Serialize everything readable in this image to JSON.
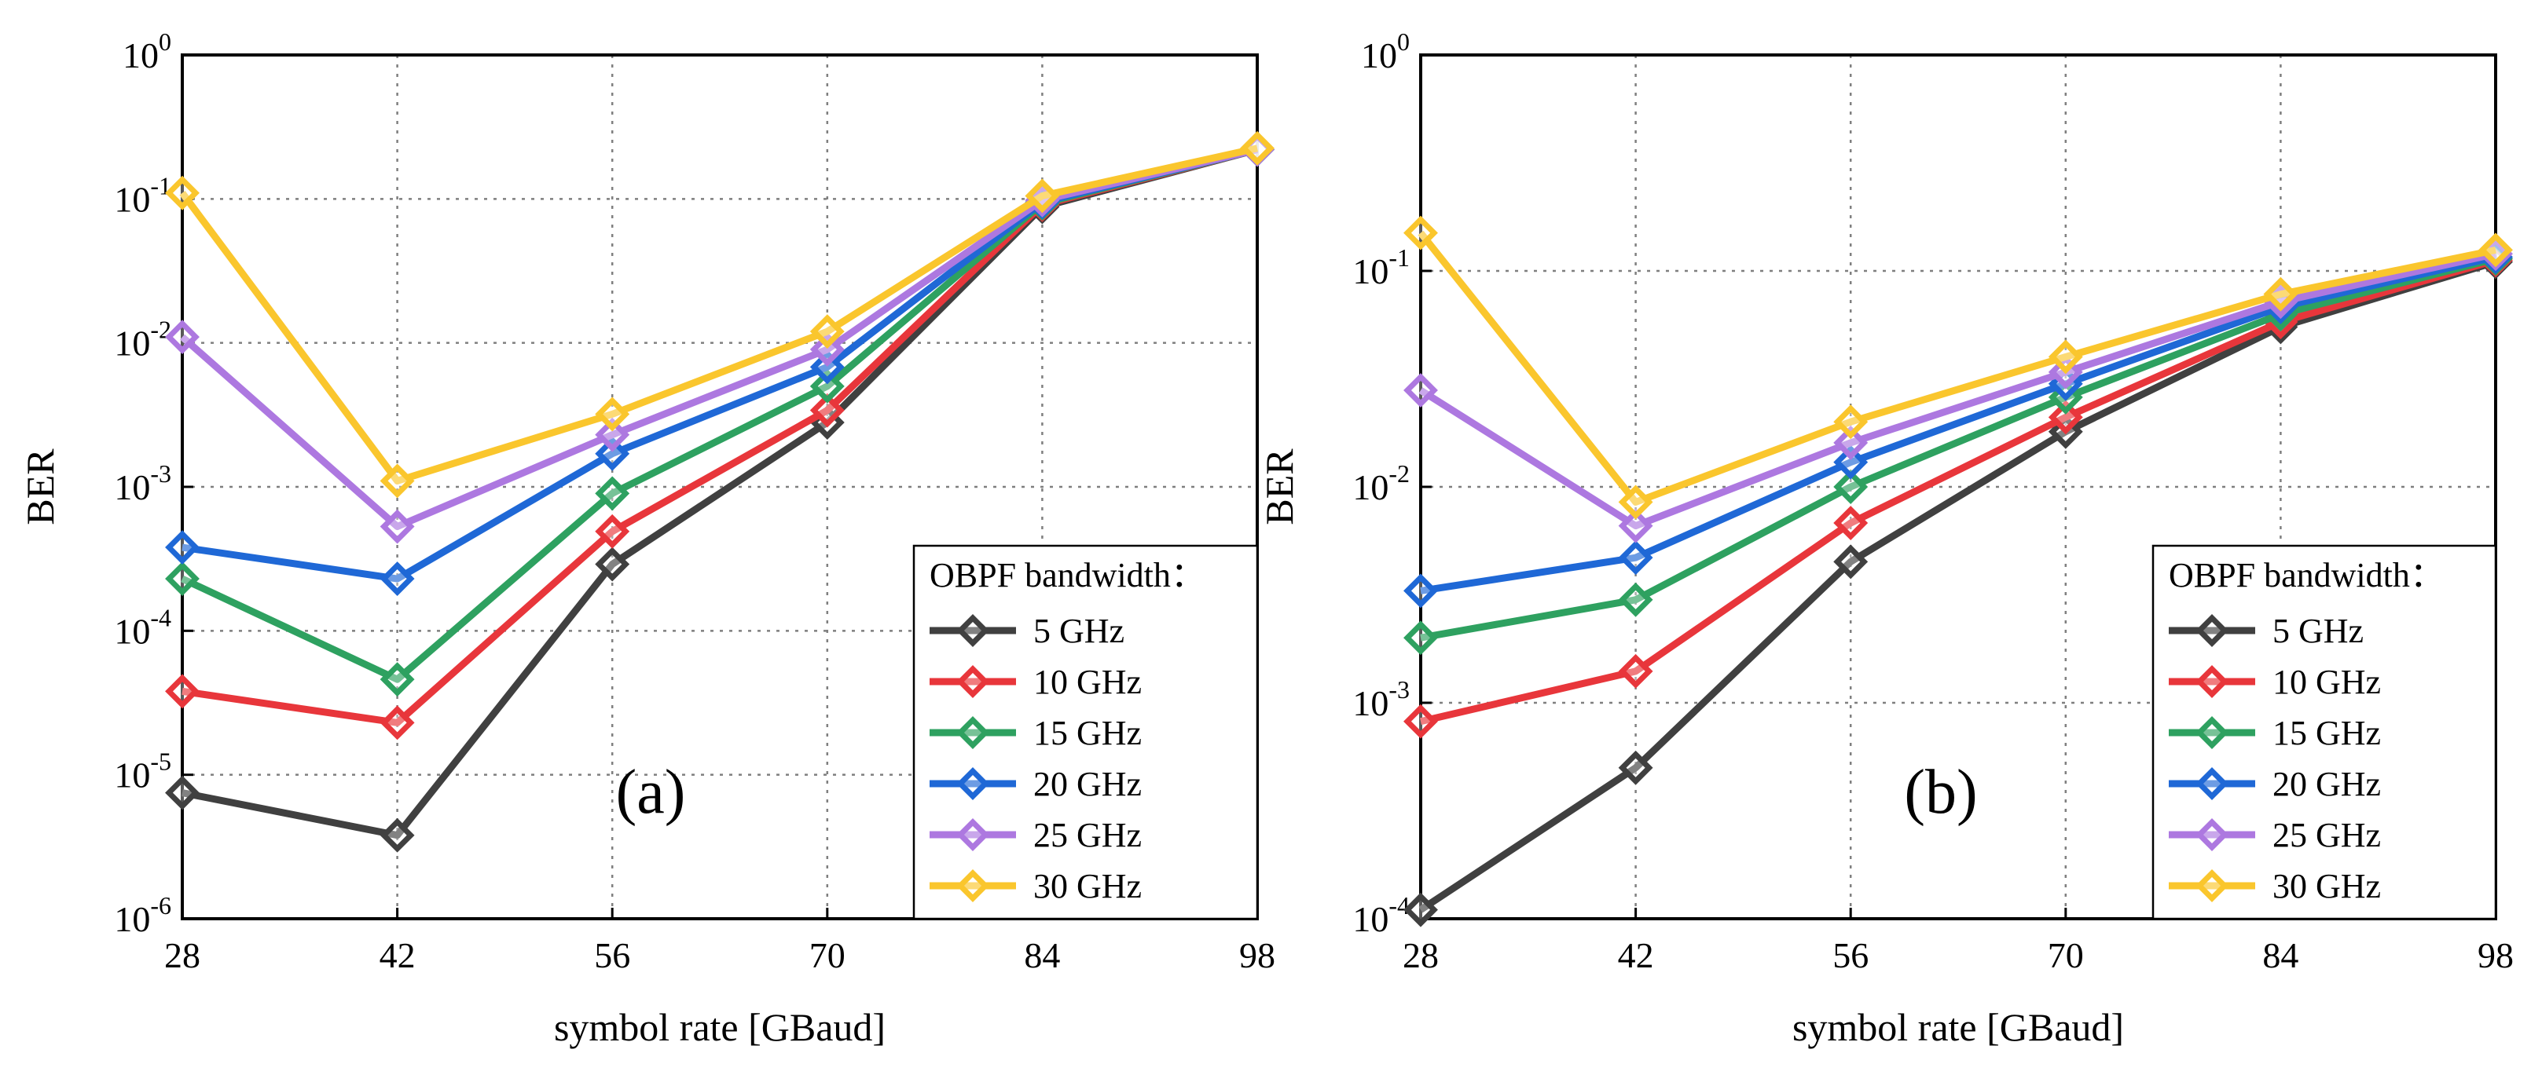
{
  "chart_data": [
    {
      "type": "line",
      "panel_label": "(a)",
      "xlabel": "symbol rate [GBaud]",
      "ylabel": "BER",
      "yscale": "log",
      "grid": true,
      "x": [
        28,
        42,
        56,
        70,
        84,
        98
      ],
      "x_tick_labels": [
        "28",
        "42",
        "56",
        "70",
        "84",
        "98"
      ],
      "xlim": [
        28,
        98
      ],
      "ylim": [
        1e-06,
        1
      ],
      "y_ticks": [
        {
          "exp": -6,
          "base": "10",
          "sup": "-6"
        },
        {
          "exp": -5,
          "base": "10",
          "sup": "-5"
        },
        {
          "exp": -4,
          "base": "10",
          "sup": "-4"
        },
        {
          "exp": -3,
          "base": "10",
          "sup": "-3"
        },
        {
          "exp": -2,
          "base": "10",
          "sup": "-2"
        },
        {
          "exp": -1,
          "base": "10",
          "sup": "-1"
        },
        {
          "exp": 0,
          "base": "10",
          "sup": "0"
        }
      ],
      "legend": {
        "title": "OBPF bandwidth：",
        "position": "bottom-right"
      },
      "series": [
        {
          "name": "5 GHz",
          "color": "#404040",
          "values": [
            7.5e-06,
            3.8e-06,
            0.00029,
            0.0028,
            0.088,
            0.22
          ]
        },
        {
          "name": "10 GHz",
          "color": "#e8363b",
          "values": [
            3.8e-05,
            2.3e-05,
            0.00049,
            0.0034,
            0.091,
            0.22
          ]
        },
        {
          "name": "15 GHz",
          "color": "#2ea160",
          "values": [
            0.00023,
            4.6e-05,
            0.0009,
            0.005,
            0.093,
            0.22
          ]
        },
        {
          "name": "20 GHz",
          "color": "#1f68d6",
          "values": [
            0.00038,
            0.00023,
            0.0017,
            0.0068,
            0.095,
            0.22
          ]
        },
        {
          "name": "25 GHz",
          "color": "#ad78e0",
          "values": [
            0.011,
            0.00053,
            0.0023,
            0.009,
            0.098,
            0.22
          ]
        },
        {
          "name": "30 GHz",
          "color": "#fac62d",
          "values": [
            0.11,
            0.0011,
            0.0032,
            0.012,
            0.105,
            0.225
          ]
        }
      ]
    },
    {
      "type": "line",
      "panel_label": "(b)",
      "xlabel": "symbol rate [GBaud]",
      "ylabel": "BER",
      "yscale": "log",
      "grid": true,
      "x": [
        28,
        42,
        56,
        70,
        84,
        98
      ],
      "x_tick_labels": [
        "28",
        "42",
        "56",
        "70",
        "84",
        "98"
      ],
      "xlim": [
        28,
        98
      ],
      "ylim": [
        0.0001,
        1
      ],
      "y_ticks": [
        {
          "exp": -4,
          "base": "10",
          "sup": "-4"
        },
        {
          "exp": -3,
          "base": "10",
          "sup": "-3"
        },
        {
          "exp": -2,
          "base": "10",
          "sup": "-2"
        },
        {
          "exp": -1,
          "base": "10",
          "sup": "-1"
        },
        {
          "exp": 0,
          "base": "10",
          "sup": "0"
        }
      ],
      "legend": {
        "title": "OBPF bandwidth：",
        "position": "bottom-right"
      },
      "series": [
        {
          "name": "5 GHz",
          "color": "#404040",
          "values": [
            0.00011,
            0.0005,
            0.0045,
            0.018,
            0.055,
            0.11
          ]
        },
        {
          "name": "10 GHz",
          "color": "#e8363b",
          "values": [
            0.00082,
            0.0014,
            0.0068,
            0.021,
            0.058,
            0.112
          ]
        },
        {
          "name": "15 GHz",
          "color": "#2ea160",
          "values": [
            0.002,
            0.003,
            0.01,
            0.026,
            0.063,
            0.114
          ]
        },
        {
          "name": "20 GHz",
          "color": "#1f68d6",
          "values": [
            0.0033,
            0.0047,
            0.013,
            0.03,
            0.068,
            0.116
          ]
        },
        {
          "name": "25 GHz",
          "color": "#ad78e0",
          "values": [
            0.028,
            0.0066,
            0.016,
            0.034,
            0.072,
            0.12
          ]
        },
        {
          "name": "30 GHz",
          "color": "#fac62d",
          "values": [
            0.15,
            0.0085,
            0.02,
            0.04,
            0.078,
            0.125
          ]
        }
      ]
    }
  ]
}
